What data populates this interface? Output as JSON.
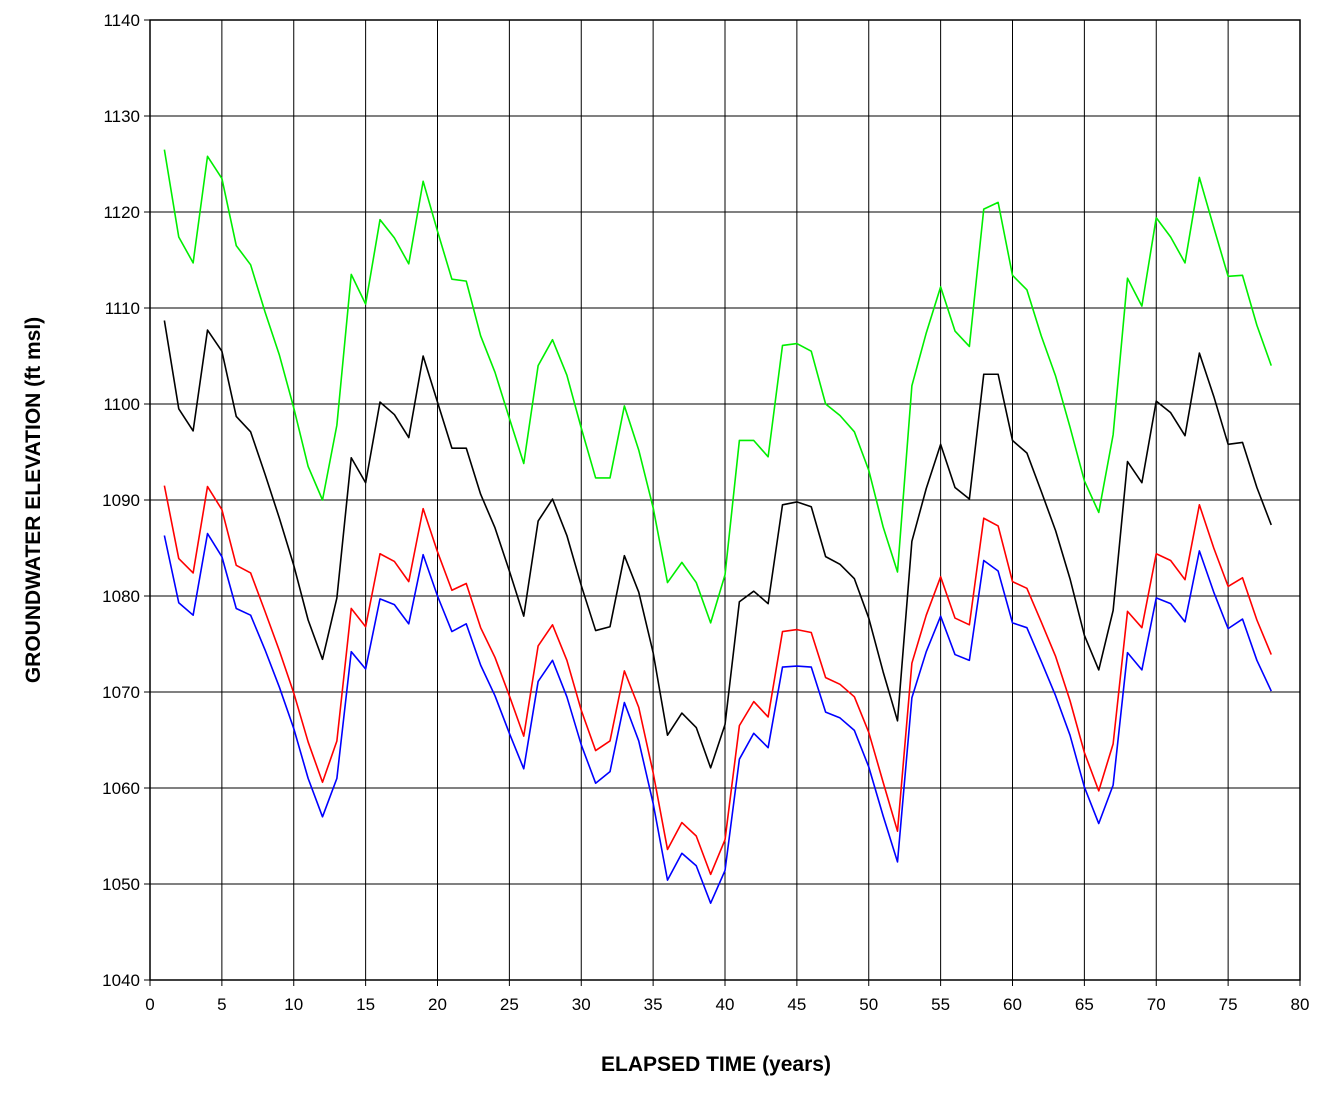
{
  "chart_data": {
    "type": "line",
    "title": "",
    "xlabel": "ELAPSED TIME (years)",
    "ylabel": "GROUNDWATER ELEVATION (ft msl)",
    "xlim": [
      0,
      80
    ],
    "ylim": [
      1040,
      1140
    ],
    "xticks": [
      0,
      5,
      10,
      15,
      20,
      25,
      30,
      35,
      40,
      45,
      50,
      55,
      60,
      65,
      70,
      75,
      80
    ],
    "yticks": [
      1040,
      1050,
      1060,
      1070,
      1080,
      1090,
      1100,
      1110,
      1120,
      1130,
      1140
    ],
    "grid": true,
    "legend": "none",
    "x": [
      1,
      2,
      3,
      4,
      5,
      6,
      7,
      8,
      9,
      10,
      11,
      12,
      13,
      14,
      15,
      16,
      17,
      18,
      19,
      20,
      21,
      22,
      23,
      24,
      25,
      26,
      27,
      28,
      29,
      30,
      31,
      32,
      33,
      34,
      35,
      36,
      37,
      38,
      39,
      40,
      41,
      42,
      43,
      44,
      45,
      46,
      47,
      48,
      49,
      50,
      51,
      52,
      53,
      54,
      55,
      56,
      57,
      58,
      59,
      60,
      61,
      62,
      63,
      64,
      65,
      66,
      67,
      68,
      69,
      70,
      71,
      72,
      73,
      74,
      75,
      76,
      77,
      78
    ],
    "series": [
      {
        "color": "#00ee00",
        "values": [
          1126.5,
          1117.4,
          1114.7,
          1125.8,
          1123.5,
          1116.5,
          1114.5,
          1109.6,
          1105.1,
          1099.6,
          1093.5,
          1090.0,
          1097.8,
          1113.5,
          1110.4,
          1119.2,
          1117.3,
          1114.6,
          1123.2,
          1118.0,
          1113.0,
          1112.8,
          1107.1,
          1103.3,
          1098.5,
          1093.8,
          1104.0,
          1106.7,
          1103.0,
          1097.5,
          1092.3,
          1092.3,
          1099.8,
          1095.2,
          1089.2,
          1081.4,
          1083.5,
          1081.4,
          1077.2,
          1082.2,
          1096.2,
          1096.2,
          1094.5,
          1106.1,
          1106.3,
          1105.5,
          1100.0,
          1098.8,
          1097.1,
          1093.1,
          1087.2,
          1082.5,
          1101.9,
          1107.4,
          1112.2,
          1107.6,
          1106.0,
          1120.3,
          1121.0,
          1113.4,
          1111.9,
          1107.1,
          1102.9,
          1097.6,
          1092.0,
          1088.7,
          1096.8,
          1113.1,
          1110.2,
          1119.4,
          1117.4,
          1114.7,
          1123.6,
          1118.4,
          1113.3,
          1113.4,
          1108.2,
          1104.0
        ]
      },
      {
        "color": "#000000",
        "values": [
          1108.7,
          1099.5,
          1097.2,
          1107.7,
          1105.5,
          1098.7,
          1097.1,
          1092.7,
          1088.1,
          1083.2,
          1077.5,
          1073.4,
          1079.8,
          1094.4,
          1091.8,
          1100.2,
          1098.9,
          1096.5,
          1105.0,
          1100.2,
          1095.4,
          1095.4,
          1090.6,
          1087.1,
          1082.6,
          1077.9,
          1087.8,
          1090.1,
          1086.3,
          1081.1,
          1076.4,
          1076.8,
          1084.2,
          1080.4,
          1074.1,
          1065.5,
          1067.8,
          1066.3,
          1062.1,
          1066.6,
          1079.4,
          1080.5,
          1079.2,
          1089.5,
          1089.8,
          1089.3,
          1084.1,
          1083.3,
          1081.8,
          1077.7,
          1072.1,
          1067.0,
          1085.7,
          1091.2,
          1095.8,
          1091.3,
          1090.1,
          1103.1,
          1103.1,
          1096.2,
          1094.9,
          1090.9,
          1086.8,
          1081.8,
          1075.9,
          1072.3,
          1078.5,
          1094.0,
          1091.8,
          1100.3,
          1099.1,
          1096.7,
          1105.3,
          1100.8,
          1095.8,
          1096.0,
          1091.3,
          1087.4
        ]
      },
      {
        "color": "#ff0000",
        "values": [
          1091.5,
          1083.9,
          1082.4,
          1091.4,
          1089.0,
          1083.2,
          1082.4,
          1078.4,
          1074.3,
          1069.9,
          1064.8,
          1060.6,
          1064.9,
          1078.7,
          1076.8,
          1084.4,
          1083.6,
          1081.5,
          1089.1,
          1084.6,
          1080.6,
          1081.3,
          1076.7,
          1073.6,
          1069.6,
          1065.4,
          1074.8,
          1077.0,
          1073.3,
          1068.1,
          1063.9,
          1064.9,
          1072.2,
          1068.4,
          1061.6,
          1053.6,
          1056.4,
          1055.0,
          1051.0,
          1054.6,
          1066.5,
          1069.0,
          1067.4,
          1076.3,
          1076.5,
          1076.2,
          1071.5,
          1070.8,
          1069.5,
          1065.8,
          1060.6,
          1055.5,
          1073.0,
          1078.0,
          1082.0,
          1077.7,
          1077.0,
          1088.1,
          1087.3,
          1081.5,
          1080.8,
          1077.3,
          1073.7,
          1069.1,
          1063.7,
          1059.7,
          1064.6,
          1078.4,
          1076.7,
          1084.4,
          1083.7,
          1081.7,
          1089.5,
          1085.0,
          1081.0,
          1081.9,
          1077.5,
          1073.9
        ]
      },
      {
        "color": "#0000ff",
        "values": [
          1086.3,
          1079.3,
          1078.0,
          1086.5,
          1084.1,
          1078.7,
          1078.0,
          1074.4,
          1070.5,
          1066.2,
          1061.0,
          1057.0,
          1061.0,
          1074.2,
          1072.4,
          1079.7,
          1079.1,
          1077.1,
          1084.3,
          1080.0,
          1076.3,
          1077.1,
          1072.8,
          1069.6,
          1065.7,
          1062.0,
          1071.1,
          1073.3,
          1069.5,
          1064.5,
          1060.5,
          1061.7,
          1068.9,
          1064.9,
          1058.4,
          1050.4,
          1053.2,
          1051.9,
          1048.0,
          1051.4,
          1063.0,
          1065.7,
          1064.2,
          1072.6,
          1072.7,
          1072.6,
          1067.9,
          1067.3,
          1066.0,
          1062.2,
          1057.1,
          1052.3,
          1069.4,
          1074.2,
          1077.9,
          1073.9,
          1073.3,
          1083.7,
          1082.6,
          1077.2,
          1076.7,
          1073.2,
          1069.6,
          1065.5,
          1060.1,
          1056.3,
          1060.3,
          1074.1,
          1072.3,
          1079.8,
          1079.2,
          1077.3,
          1084.7,
          1080.4,
          1076.6,
          1077.6,
          1073.3,
          1070.1
        ]
      }
    ]
  }
}
